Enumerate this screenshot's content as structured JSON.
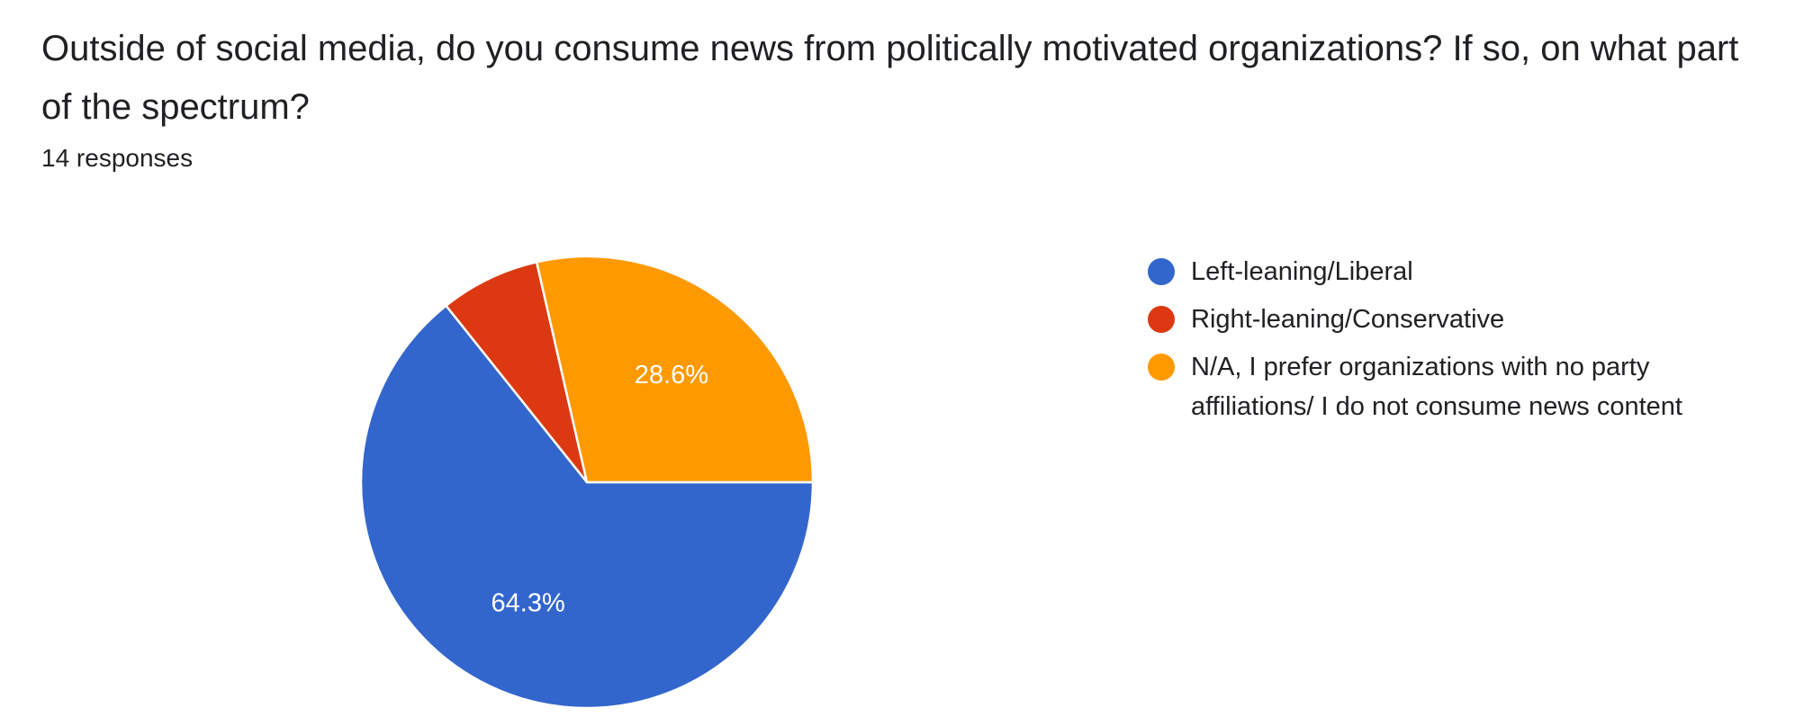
{
  "question": {
    "title": "Outside of social media, do you consume news from politically motivated organizations? If so, on what part of the spectrum?",
    "responses": "14 responses"
  },
  "chart_data": {
    "type": "pie",
    "total_responses": 14,
    "slices": [
      {
        "label": "Left-leaning/Liberal",
        "count": 9,
        "percent": 64.3,
        "display": "64.3%",
        "color": "#3366cc"
      },
      {
        "label": "Right-leaning/Conservative",
        "count": 1,
        "percent": 7.1,
        "display": "",
        "color": "#dc3912"
      },
      {
        "label": "N/A, I prefer organizations with no party affiliations/ I do not consume news content",
        "count": 4,
        "percent": 28.6,
        "display": "28.6%",
        "color": "#ff9900"
      }
    ],
    "legend_placement": "right"
  }
}
